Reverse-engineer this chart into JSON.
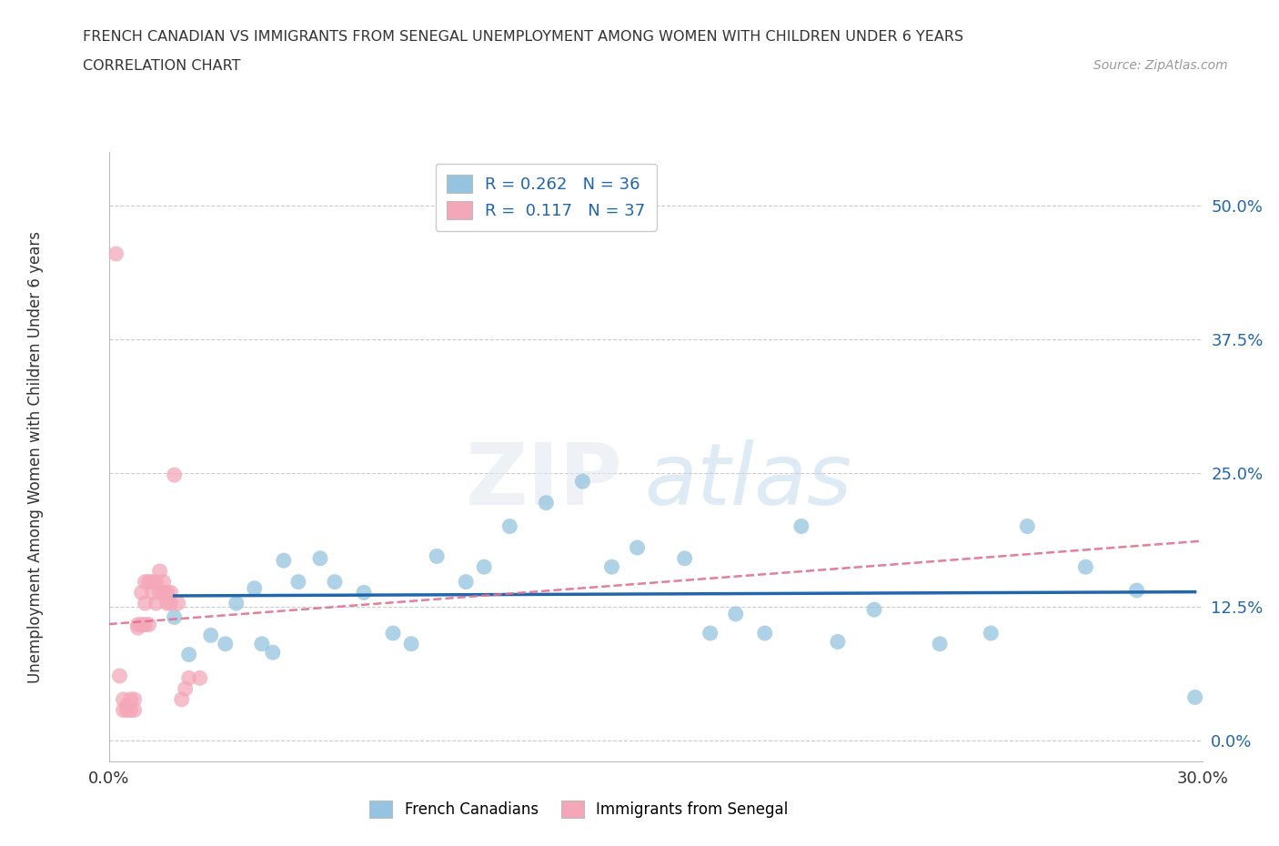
{
  "title_line1": "FRENCH CANADIAN VS IMMIGRANTS FROM SENEGAL UNEMPLOYMENT AMONG WOMEN WITH CHILDREN UNDER 6 YEARS",
  "title_line2": "CORRELATION CHART",
  "source": "Source: ZipAtlas.com",
  "ylabel": "Unemployment Among Women with Children Under 6 years",
  "xlim": [
    0.0,
    0.3
  ],
  "ylim": [
    -0.02,
    0.55
  ],
  "yticks": [
    0.0,
    0.125,
    0.25,
    0.375,
    0.5
  ],
  "ytick_labels": [
    "0.0%",
    "12.5%",
    "25.0%",
    "37.5%",
    "50.0%"
  ],
  "xticks": [
    0.0,
    0.05,
    0.1,
    0.15,
    0.2,
    0.25,
    0.3
  ],
  "legend_entry1": "R = 0.262   N = 36",
  "legend_entry2": "R =  0.117   N = 37",
  "blue_color": "#94c4e0",
  "pink_color": "#f4a7b9",
  "blue_line_color": "#2166ac",
  "pink_line_color": "#e07090",
  "watermark_zip": "ZIP",
  "watermark_atlas": "atlas",
  "blue_scatter_x": [
    0.018,
    0.022,
    0.028,
    0.032,
    0.035,
    0.04,
    0.042,
    0.045,
    0.048,
    0.052,
    0.058,
    0.062,
    0.07,
    0.078,
    0.083,
    0.09,
    0.098,
    0.103,
    0.11,
    0.12,
    0.13,
    0.138,
    0.145,
    0.158,
    0.165,
    0.172,
    0.18,
    0.19,
    0.2,
    0.21,
    0.228,
    0.242,
    0.252,
    0.268,
    0.282,
    0.298
  ],
  "blue_scatter_y": [
    0.115,
    0.08,
    0.098,
    0.09,
    0.128,
    0.142,
    0.09,
    0.082,
    0.168,
    0.148,
    0.17,
    0.148,
    0.138,
    0.1,
    0.09,
    0.172,
    0.148,
    0.162,
    0.2,
    0.222,
    0.242,
    0.162,
    0.18,
    0.17,
    0.1,
    0.118,
    0.1,
    0.2,
    0.092,
    0.122,
    0.09,
    0.1,
    0.2,
    0.162,
    0.14,
    0.04
  ],
  "pink_scatter_x": [
    0.002,
    0.003,
    0.004,
    0.004,
    0.005,
    0.005,
    0.006,
    0.006,
    0.007,
    0.007,
    0.008,
    0.008,
    0.009,
    0.009,
    0.01,
    0.01,
    0.01,
    0.011,
    0.011,
    0.012,
    0.012,
    0.013,
    0.013,
    0.014,
    0.014,
    0.015,
    0.015,
    0.016,
    0.016,
    0.017,
    0.017,
    0.018,
    0.019,
    0.02,
    0.021,
    0.022,
    0.025
  ],
  "pink_scatter_y": [
    0.455,
    0.06,
    0.038,
    0.028,
    0.028,
    0.032,
    0.028,
    0.038,
    0.028,
    0.038,
    0.105,
    0.108,
    0.138,
    0.108,
    0.108,
    0.128,
    0.148,
    0.108,
    0.148,
    0.138,
    0.148,
    0.148,
    0.128,
    0.158,
    0.138,
    0.138,
    0.148,
    0.138,
    0.128,
    0.138,
    0.128,
    0.248,
    0.128,
    0.038,
    0.048,
    0.058,
    0.058
  ]
}
